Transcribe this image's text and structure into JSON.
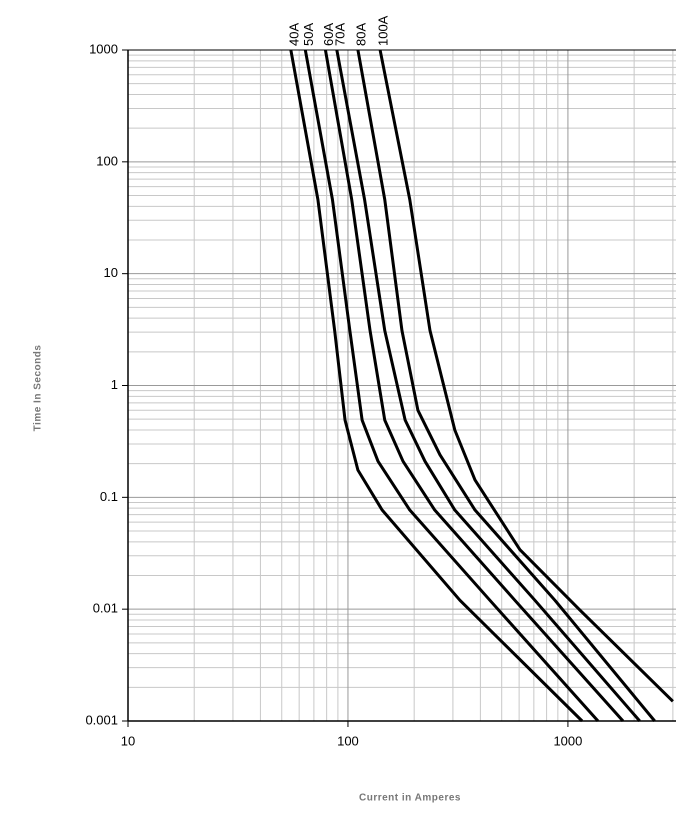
{
  "chart_data": {
    "type": "line",
    "xlabel": "Current in Amperes",
    "ylabel": "Time In Seconds",
    "xscale": "log",
    "yscale": "log",
    "xlim": [
      10,
      3100
    ],
    "ylim": [
      0.001,
      1000
    ],
    "xticks": [
      10,
      100,
      1000
    ],
    "yticks": [
      0.001,
      0.01,
      0.1,
      1,
      10,
      100,
      1000
    ],
    "grid": true,
    "minor_grid": true,
    "series": [
      {
        "name": "40A",
        "color": "#000000",
        "x": [
          55,
          73,
          87,
          97,
          111,
          143,
          323,
          1160
        ],
        "values": [
          1000,
          46,
          3.1,
          0.49,
          0.175,
          0.077,
          0.012,
          0.001
        ]
      },
      {
        "name": "50A",
        "color": "#000000",
        "x": [
          64,
          85,
          102,
          116,
          137,
          191,
          442,
          1370
        ],
        "values": [
          1000,
          46,
          3.1,
          0.49,
          0.21,
          0.077,
          0.012,
          0.001
        ]
      },
      {
        "name": "60A",
        "color": "#000000",
        "x": [
          79,
          104,
          126,
          147,
          178,
          248,
          574,
          1780
        ],
        "values": [
          1000,
          46,
          3.1,
          0.49,
          0.21,
          0.077,
          0.012,
          0.001
        ]
      },
      {
        "name": "70A",
        "color": "#000000",
        "x": [
          89,
          119,
          147,
          182,
          224,
          306,
          708,
          2120
        ],
        "values": [
          1000,
          46,
          3.1,
          0.49,
          0.21,
          0.077,
          0.012,
          0.001
        ]
      },
      {
        "name": "80A",
        "color": "#000000",
        "x": [
          111,
          147,
          176,
          208,
          262,
          378,
          873,
          2480
        ],
        "values": [
          1000,
          46,
          3.1,
          0.6,
          0.24,
          0.077,
          0.012,
          0.001
        ]
      },
      {
        "name": "100A",
        "color": "#000000",
        "x": [
          140,
          191,
          236,
          306,
          378,
          605,
          1135,
          3000
        ],
        "values": [
          1000,
          46,
          3.1,
          0.4,
          0.143,
          0.034,
          0.0098,
          0.0015
        ]
      }
    ]
  }
}
